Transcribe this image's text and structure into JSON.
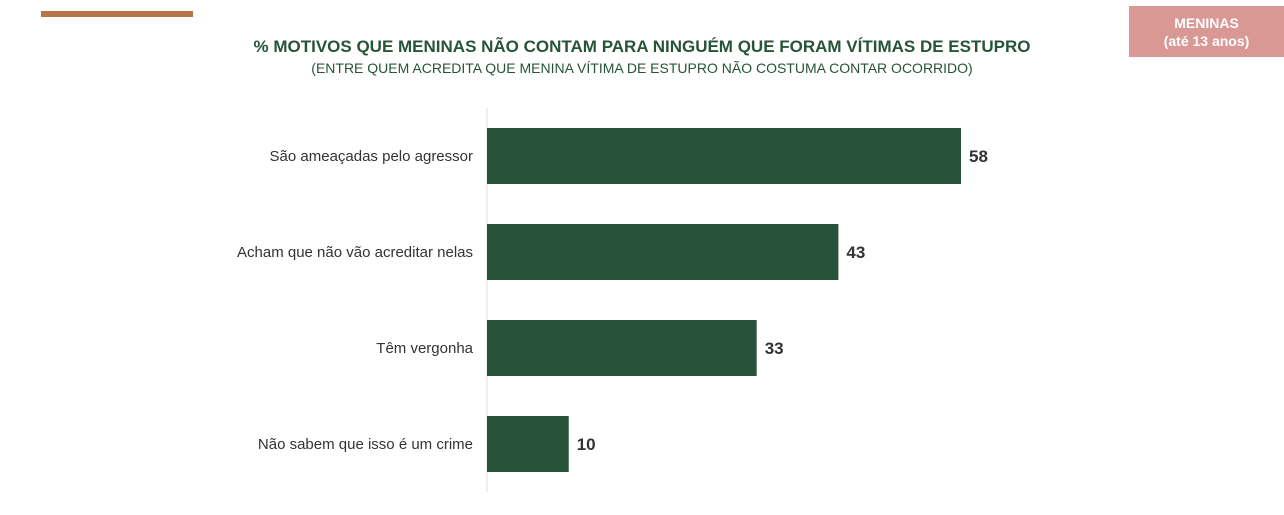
{
  "badge": {
    "line1": "MENINAS",
    "line2": "(até 13 anos)"
  },
  "chart_data": {
    "type": "bar",
    "orientation": "horizontal",
    "title": "% MOTIVOS QUE MENINAS NÃO CONTAM PARA NINGUÉM QUE FORAM VÍTIMAS DE ESTUPRO",
    "subtitle": "(ENTRE QUEM ACREDITA QUE MENINA VÍTIMA DE ESTUPRO NÃO COSTUMA CONTAR OCORRIDO)",
    "categories": [
      "São ameaçadas pelo agressor",
      "Acham que não vão acreditar nelas",
      "Têm vergonha",
      "Não sabem que isso é um crime"
    ],
    "values": [
      58,
      43,
      33,
      10
    ],
    "color": "#27533a",
    "xlim": [
      0,
      65
    ]
  }
}
